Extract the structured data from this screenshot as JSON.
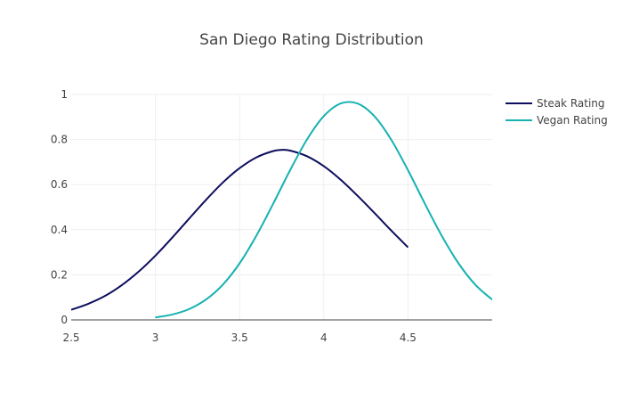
{
  "chart_data": {
    "type": "line",
    "title": "San Diego Rating Distribution",
    "xlabel": "",
    "ylabel": "",
    "xlim": [
      2.5,
      5.0
    ],
    "ylim": [
      0,
      1.0
    ],
    "x_ticks": [
      2.5,
      3,
      3.5,
      4,
      4.5
    ],
    "x_tick_labels": [
      "2.5",
      "3",
      "3.5",
      "4",
      "4.5"
    ],
    "y_ticks": [
      0,
      0.2,
      0.4,
      0.6,
      0.8,
      1
    ],
    "y_tick_labels": [
      "0",
      "0.2",
      "0.4",
      "0.6",
      "0.8",
      "1"
    ],
    "grid": true,
    "legend_position": "top-right",
    "series": [
      {
        "name": "Steak Rating",
        "color": "#0d0d5e",
        "x": [
          2.5,
          2.6,
          2.7,
          2.8,
          2.9,
          3.0,
          3.1,
          3.2,
          3.3,
          3.4,
          3.5,
          3.6,
          3.7,
          3.75,
          3.8,
          3.9,
          4.0,
          4.1,
          4.2,
          4.3,
          4.4,
          4.5
        ],
        "values": [
          0.045,
          0.071,
          0.106,
          0.154,
          0.214,
          0.285,
          0.365,
          0.449,
          0.532,
          0.609,
          0.673,
          0.721,
          0.749,
          0.754,
          0.751,
          0.726,
          0.682,
          0.622,
          0.551,
          0.475,
          0.397,
          0.322
        ]
      },
      {
        "name": "Vegan Rating",
        "color": "#17b1b1",
        "x": [
          3.0,
          3.1,
          3.2,
          3.3,
          3.4,
          3.5,
          3.6,
          3.7,
          3.8,
          3.9,
          4.0,
          4.1,
          4.2,
          4.3,
          4.4,
          4.5,
          4.6,
          4.7,
          4.8,
          4.9,
          5.0
        ],
        "values": [
          0.011,
          0.024,
          0.048,
          0.09,
          0.156,
          0.251,
          0.374,
          0.516,
          0.664,
          0.8,
          0.904,
          0.96,
          0.96,
          0.904,
          0.8,
          0.664,
          0.516,
          0.374,
          0.251,
          0.156,
          0.09
        ]
      }
    ]
  }
}
